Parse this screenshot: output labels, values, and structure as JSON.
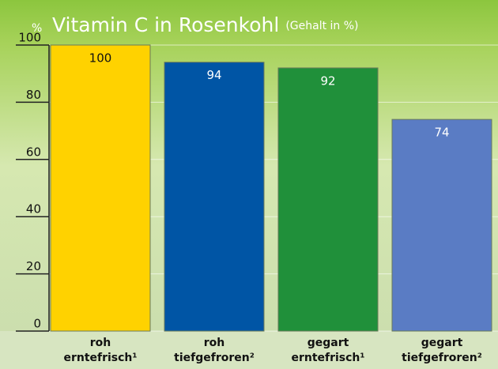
{
  "chart_data": {
    "type": "bar",
    "title": "Vitamin C in Rosenkohl",
    "subtitle": "(Gehalt in %)",
    "y_label": "%",
    "categories": [
      [
        "roh",
        "erntefrisch¹"
      ],
      [
        "roh",
        "tiefgefroren²"
      ],
      [
        "gegart",
        "erntefrisch¹"
      ],
      [
        "gegart",
        "tiefgefroren²"
      ]
    ],
    "values": [
      100,
      94,
      92,
      74
    ],
    "colors": [
      "#ffd200",
      "#0055a5",
      "#20903a",
      "#5a7cc4"
    ],
    "ylim": [
      0,
      100
    ],
    "yticks": [
      0,
      20,
      40,
      60,
      80,
      100
    ],
    "grid": true
  }
}
